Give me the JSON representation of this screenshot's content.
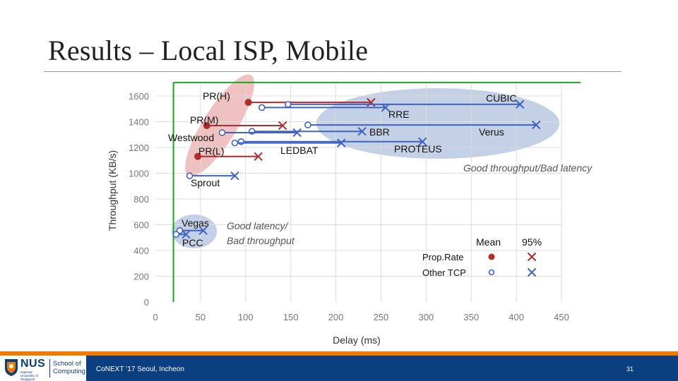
{
  "slide": {
    "title": "Results – Local ISP, Mobile"
  },
  "footer": {
    "logo_text": "NUS",
    "logo_subtext": "National University of Singapore",
    "school_line1": "School of",
    "school_line2": "Computing",
    "event": "CoNEXT ’17 Seoul, Incheon",
    "page": "31"
  },
  "chart_data": {
    "type": "scatter",
    "xlabel": "Delay (ms)",
    "ylabel": "Throughput (KB/s)",
    "xlim": [
      0,
      450
    ],
    "ylim": [
      0,
      1700
    ],
    "x_ticks": [
      0,
      50,
      100,
      150,
      200,
      250,
      300,
      350,
      400,
      450
    ],
    "y_ticks": [
      0,
      200,
      400,
      600,
      800,
      1000,
      1200,
      1400,
      1600
    ],
    "grid": true,
    "reference_lines": {
      "vertical_x": 20,
      "horizontal_y": 1705
    },
    "colors": {
      "prop_rate": "#b22b2b",
      "other_tcp": "#3f63c4",
      "reference": "#1ea51e",
      "red_region": "#e9a6a6",
      "blue_region": "#9bb0d6"
    },
    "legend": {
      "header_mean": "Mean",
      "header_95": "95%",
      "rows": [
        {
          "label": "Prop.Rate",
          "group": "prop"
        },
        {
          "label": "Other TCP",
          "group": "other"
        }
      ]
    },
    "series": [
      {
        "name": "PR(H)",
        "group": "prop",
        "mean": [
          103,
          1550
        ],
        "p95": [
          239,
          1550
        ]
      },
      {
        "name": "PR(M)",
        "group": "prop",
        "mean": [
          57,
          1370
        ],
        "p95": [
          141,
          1370
        ]
      },
      {
        "name": "PR(L)",
        "group": "prop",
        "mean": [
          47,
          1130
        ],
        "p95": [
          114,
          1130
        ]
      },
      {
        "name": "CUBIC",
        "group": "other",
        "mean": [
          147,
          1535
        ],
        "p95": [
          404,
          1535
        ]
      },
      {
        "name": "RRE",
        "group": "other",
        "mean": [
          118,
          1510
        ],
        "p95": [
          255,
          1510
        ]
      },
      {
        "name": "Verus",
        "group": "other",
        "mean": [
          169,
          1375
        ],
        "p95": [
          422,
          1375
        ]
      },
      {
        "name": "BBR",
        "group": "other",
        "mean": [
          107,
          1325
        ],
        "p95": [
          229,
          1325
        ]
      },
      {
        "name": "Westwood",
        "group": "other",
        "mean": [
          74,
          1315
        ],
        "p95": [
          157,
          1315
        ]
      },
      {
        "name": "PROTEUS",
        "group": "other",
        "mean": [
          95,
          1245
        ],
        "p95": [
          296,
          1245
        ]
      },
      {
        "name": "LEDBAT",
        "group": "other",
        "mean": [
          88,
          1235
        ],
        "p95": [
          206,
          1235
        ]
      },
      {
        "name": "Sprout",
        "group": "other",
        "mean": [
          38,
          980
        ],
        "p95": [
          88,
          980
        ]
      },
      {
        "name": "Vegas",
        "group": "other",
        "mean": [
          27,
          555
        ],
        "p95": [
          53,
          555
        ]
      },
      {
        "name": "PCC",
        "group": "other",
        "mean": [
          23,
          525
        ],
        "p95": [
          34,
          525
        ]
      }
    ],
    "annotations": [
      {
        "id": "good-throughput",
        "text": "Good throughput/Bad latency"
      },
      {
        "id": "good-latency-1",
        "text": "Good latency/"
      },
      {
        "id": "good-latency-2",
        "text": "Bad throughput"
      }
    ]
  }
}
